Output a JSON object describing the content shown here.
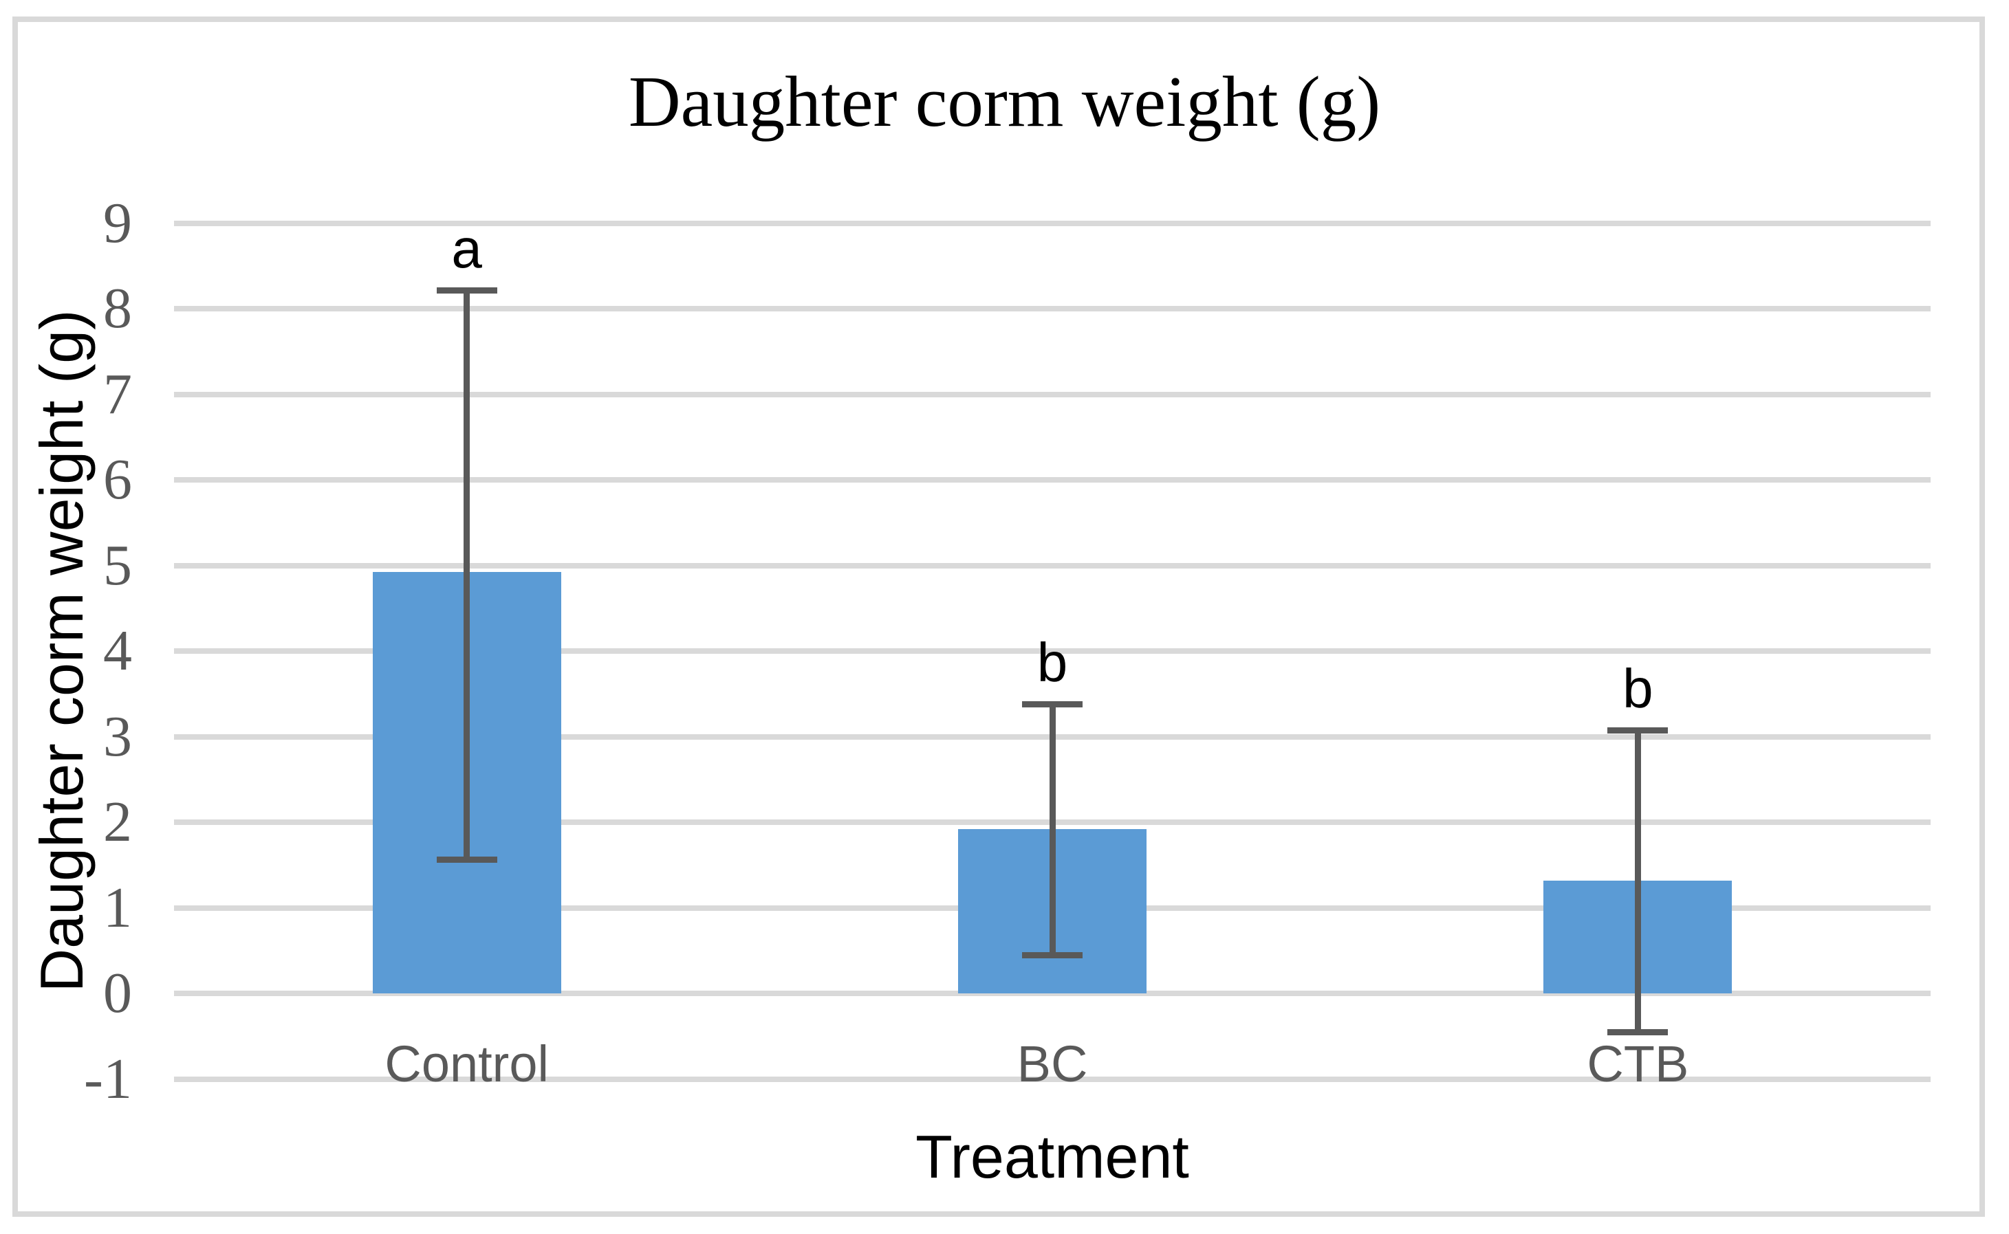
{
  "title": "Daughter corm weight (g)",
  "axes": {
    "x_title": "Treatment",
    "y_title": "Daughter corm weight (g)"
  },
  "chart_data": {
    "type": "bar",
    "categories": [
      "Control",
      "BC",
      "CTB"
    ],
    "values": [
      4.92,
      1.92,
      1.32
    ],
    "error_low": [
      1.57,
      0.45,
      -0.45
    ],
    "error_high": [
      8.22,
      3.38,
      3.08
    ],
    "sig_letters": [
      "a",
      "b",
      "b"
    ],
    "title": "Daughter corm weight (g)",
    "xlabel": "Treatment",
    "ylabel": "Daughter corm weight (g)",
    "ylim": [
      -1,
      9
    ],
    "yticks": [
      9,
      8,
      7,
      6,
      5,
      4,
      3,
      2,
      1,
      0,
      -1
    ],
    "grid": true,
    "legend": false,
    "colors": {
      "bar": "#5b9bd5",
      "error_bar": "#595959",
      "gridline": "#d9d9d9",
      "tick_label": "#595959",
      "category_label": "#595959",
      "title": "#000000",
      "border": "#d9d9d9"
    }
  }
}
